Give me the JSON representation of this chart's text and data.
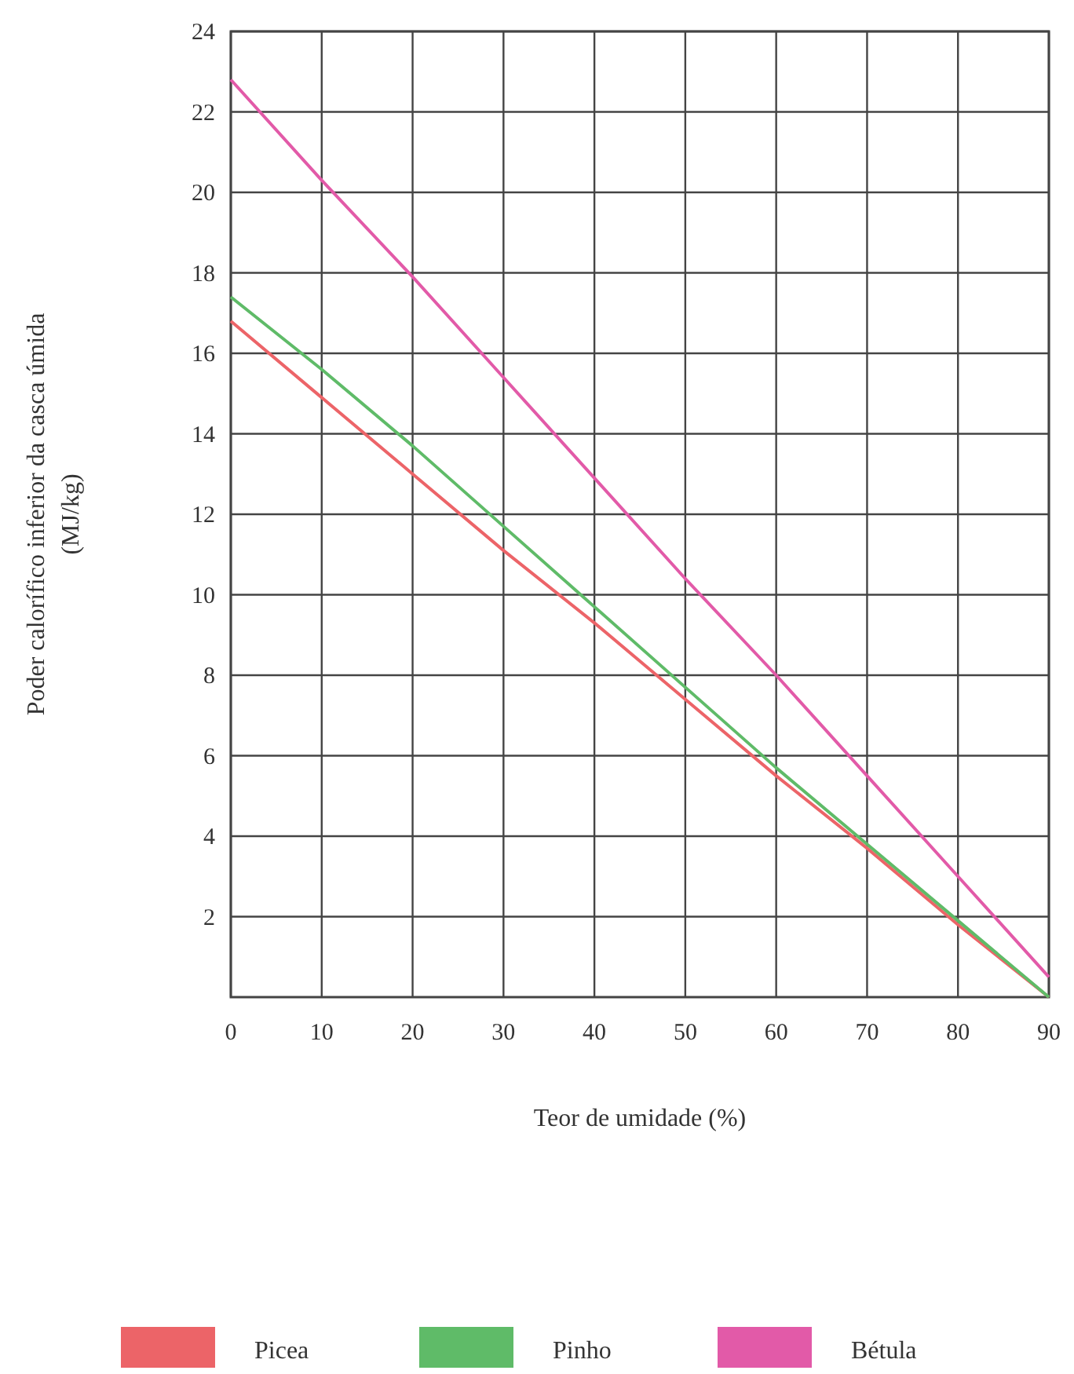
{
  "chart_data": {
    "type": "line",
    "xlabel": "Teor de umidade (%)",
    "ylabel": "Poder calorífico inferior da casca úmida (MJ/kg)",
    "x": [
      0,
      10,
      20,
      30,
      40,
      50,
      60,
      70,
      80,
      90
    ],
    "xlim": [
      0,
      90
    ],
    "xticks": [
      0,
      10,
      20,
      30,
      40,
      50,
      60,
      70,
      80,
      90
    ],
    "ylim": [
      0,
      24
    ],
    "yticks": [
      2,
      4,
      6,
      8,
      10,
      12,
      14,
      16,
      18,
      20,
      22,
      24
    ],
    "grid": true,
    "legend": "bottom",
    "marker": "none",
    "line_style": "solid",
    "series": [
      {
        "name": "Picea",
        "color": "#ec6468",
        "values": [
          16.8,
          14.9,
          13.0,
          11.1,
          9.3,
          7.4,
          5.5,
          3.7,
          1.8,
          0
        ]
      },
      {
        "name": "Pinho",
        "color": "#5fbb68",
        "values": [
          17.4,
          15.6,
          13.7,
          11.7,
          9.7,
          7.7,
          5.7,
          3.8,
          1.9,
          0
        ]
      },
      {
        "name": "Bétula",
        "color": "#e25aa8",
        "values": [
          22.8,
          20.3,
          17.9,
          15.4,
          12.9,
          10.4,
          8.0,
          5.5,
          3.0,
          0.5
        ]
      }
    ]
  }
}
